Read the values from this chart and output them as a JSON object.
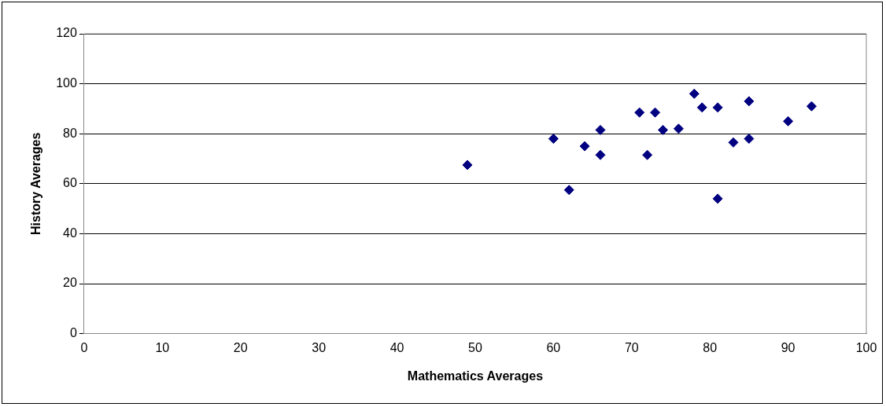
{
  "chart_data": {
    "type": "scatter",
    "xlabel": "Mathematics Averages",
    "ylabel": "History Averages",
    "x": [
      49,
      60,
      62,
      64,
      66,
      66,
      71,
      72,
      73,
      74,
      76,
      78,
      79,
      81,
      81,
      83,
      85,
      85,
      90,
      93
    ],
    "values": [
      67.5,
      78,
      57.5,
      75,
      81.5,
      71.5,
      88.5,
      71.5,
      88.5,
      81.5,
      82,
      96,
      90.5,
      90.5,
      54,
      76.5,
      93,
      78,
      85,
      91
    ],
    "color": "#000080",
    "marker": "diamond",
    "grid": "y",
    "legend": false,
    "xlim": [
      0,
      100
    ],
    "xticks": [
      0,
      10,
      20,
      30,
      40,
      50,
      60,
      70,
      80,
      90,
      100
    ],
    "ylim": [
      0,
      120
    ],
    "yticks": [
      0,
      20,
      40,
      60,
      80,
      100,
      120
    ]
  }
}
